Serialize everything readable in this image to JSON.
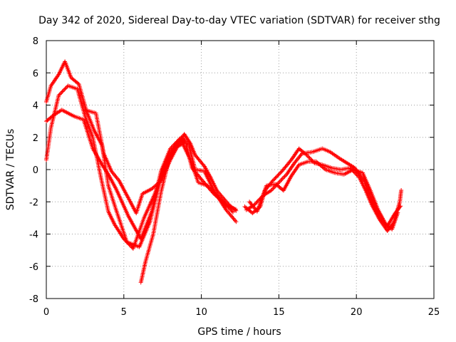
{
  "chart_data": {
    "type": "line",
    "title": "Day 342 of 2020, Sidereal Day-to-day VTEC variation (SDTVAR) for receiver sthg",
    "xlabel": "GPS time / hours",
    "ylabel": "SDTVAR / TECUs",
    "xlim": [
      0,
      25
    ],
    "ylim": [
      -8,
      8
    ],
    "xticks": [
      0,
      5,
      10,
      15,
      20,
      25
    ],
    "xtick_labels": [
      "0",
      "5",
      "10",
      "15",
      "20",
      "25"
    ],
    "yticks": [
      -8,
      -6,
      -4,
      -2,
      0,
      2,
      4,
      6,
      8
    ],
    "ytick_labels": [
      "-8",
      "-6",
      "-4",
      "-2",
      "0",
      "2",
      "4",
      "6",
      "8"
    ],
    "grid": true,
    "marker": "+",
    "color": "#ff0000",
    "series": [
      {
        "name": "track-1",
        "points": [
          [
            0.0,
            4.2
          ],
          [
            0.3,
            5.2
          ],
          [
            0.8,
            5.9
          ],
          [
            1.2,
            6.7
          ],
          [
            1.6,
            5.7
          ],
          [
            2.1,
            5.3
          ],
          [
            2.6,
            3.6
          ],
          [
            3.1,
            2.4
          ],
          [
            3.6,
            1.5
          ],
          [
            4.0,
            -1.0
          ],
          [
            4.5,
            -2.5
          ],
          [
            5.2,
            -4.5
          ],
          [
            6.0,
            -4.8
          ],
          [
            6.7,
            -3.2
          ],
          [
            7.3,
            -0.8
          ],
          [
            7.9,
            0.8
          ],
          [
            8.5,
            1.8
          ],
          [
            9.0,
            1.6
          ],
          [
            9.4,
            0.1
          ],
          [
            10.0,
            -0.6
          ],
          [
            10.8,
            -1.5
          ],
          [
            11.6,
            -2.2
          ],
          [
            12.3,
            -2.5
          ]
        ]
      },
      {
        "name": "track-2",
        "points": [
          [
            0.0,
            3.0
          ],
          [
            0.5,
            3.4
          ],
          [
            1.0,
            3.7
          ],
          [
            1.8,
            3.3
          ],
          [
            2.4,
            3.1
          ],
          [
            3.0,
            1.3
          ],
          [
            3.6,
            0.3
          ],
          [
            4.0,
            -0.3
          ],
          [
            4.5,
            -1.2
          ],
          [
            5.3,
            -2.9
          ],
          [
            6.1,
            -4.3
          ],
          [
            6.8,
            -2.6
          ],
          [
            7.4,
            -0.1
          ],
          [
            8.0,
            1.3
          ],
          [
            8.7,
            2.0
          ],
          [
            9.2,
            1.5
          ],
          [
            9.6,
            0.0
          ],
          [
            10.2,
            -0.1
          ],
          [
            10.8,
            -1.3
          ],
          [
            11.6,
            -2.5
          ],
          [
            12.3,
            -3.3
          ]
        ]
      },
      {
        "name": "track-3",
        "points": [
          [
            0.0,
            0.6
          ],
          [
            0.3,
            2.6
          ],
          [
            0.8,
            4.6
          ],
          [
            1.4,
            5.2
          ],
          [
            2.0,
            5.0
          ],
          [
            2.5,
            3.3
          ],
          [
            3.0,
            2.0
          ],
          [
            3.5,
            -0.4
          ],
          [
            4.0,
            -2.6
          ],
          [
            4.4,
            -3.4
          ],
          [
            5.0,
            -4.3
          ],
          [
            5.6,
            -4.9
          ],
          [
            6.3,
            -3.0
          ],
          [
            7.0,
            -1.5
          ],
          [
            7.6,
            0.2
          ],
          [
            8.2,
            1.3
          ],
          [
            8.8,
            1.6
          ],
          [
            9.3,
            0.6
          ],
          [
            9.8,
            -0.8
          ],
          [
            10.4,
            -1.0
          ],
          [
            11.2,
            -1.8
          ],
          [
            12.1,
            -2.7
          ]
        ]
      },
      {
        "name": "track-4",
        "points": [
          [
            2.5,
            3.7
          ],
          [
            3.2,
            3.5
          ],
          [
            3.7,
            1.0
          ],
          [
            4.2,
            -0.1
          ],
          [
            4.7,
            -0.7
          ],
          [
            5.2,
            -1.6
          ],
          [
            5.8,
            -2.7
          ],
          [
            6.2,
            -1.5
          ],
          [
            6.8,
            -1.2
          ],
          [
            7.4,
            -0.7
          ],
          [
            8.0,
            0.6
          ],
          [
            8.6,
            1.7
          ],
          [
            9.0,
            1.9
          ]
        ]
      },
      {
        "name": "track-5",
        "points": [
          [
            6.1,
            -7.0
          ],
          [
            6.4,
            -5.7
          ],
          [
            6.9,
            -4.0
          ],
          [
            7.4,
            -1.4
          ],
          [
            7.9,
            0.6
          ],
          [
            8.4,
            1.4
          ],
          [
            8.9,
            2.2
          ],
          [
            9.3,
            1.6
          ],
          [
            9.6,
            0.9
          ],
          [
            10.2,
            0.2
          ],
          [
            10.6,
            -0.5
          ],
          [
            11.0,
            -1.3
          ],
          [
            11.8,
            -2.2
          ],
          [
            12.3,
            -2.6
          ]
        ]
      },
      {
        "name": "track-6",
        "points": [
          [
            12.8,
            -2.3
          ],
          [
            13.3,
            -2.7
          ],
          [
            13.8,
            -2.3
          ],
          [
            14.1,
            -1.3
          ],
          [
            14.6,
            -0.7
          ],
          [
            15.2,
            -0.1
          ],
          [
            15.8,
            0.6
          ],
          [
            16.3,
            1.3
          ],
          [
            16.8,
            0.9
          ],
          [
            17.3,
            0.4
          ],
          [
            17.8,
            0.3
          ],
          [
            18.4,
            0.1
          ],
          [
            19.0,
            0.0
          ],
          [
            19.6,
            0.1
          ],
          [
            20.2,
            -0.5
          ],
          [
            20.6,
            -1.3
          ],
          [
            21.0,
            -2.2
          ],
          [
            21.5,
            -3.1
          ],
          [
            22.0,
            -3.8
          ],
          [
            22.4,
            -3.3
          ],
          [
            22.8,
            -2.0
          ],
          [
            22.9,
            -1.2
          ]
        ]
      },
      {
        "name": "track-7",
        "points": [
          [
            12.9,
            -2.5
          ],
          [
            13.4,
            -2.2
          ],
          [
            14.0,
            -1.6
          ],
          [
            14.5,
            -1.3
          ],
          [
            15.0,
            -0.8
          ],
          [
            15.5,
            -0.3
          ],
          [
            16.0,
            0.4
          ],
          [
            16.5,
            1.0
          ],
          [
            17.2,
            1.1
          ],
          [
            17.8,
            1.3
          ],
          [
            18.3,
            1.1
          ],
          [
            18.9,
            0.7
          ],
          [
            19.4,
            0.4
          ],
          [
            19.9,
            0.1
          ],
          [
            20.5,
            -0.7
          ],
          [
            21.0,
            -1.9
          ],
          [
            21.5,
            -3.0
          ],
          [
            22.0,
            -3.5
          ],
          [
            22.5,
            -2.7
          ],
          [
            22.9,
            -2.2
          ]
        ]
      },
      {
        "name": "track-8",
        "points": [
          [
            13.1,
            -2.0
          ],
          [
            13.6,
            -2.6
          ],
          [
            14.2,
            -1.0
          ],
          [
            14.8,
            -0.9
          ],
          [
            15.3,
            -1.3
          ],
          [
            15.8,
            -0.4
          ],
          [
            16.3,
            0.3
          ],
          [
            16.9,
            0.5
          ],
          [
            17.4,
            0.5
          ],
          [
            18.0,
            0.0
          ],
          [
            18.6,
            -0.2
          ],
          [
            19.2,
            -0.3
          ],
          [
            19.8,
            0.0
          ],
          [
            20.4,
            -0.2
          ],
          [
            20.9,
            -1.3
          ],
          [
            21.4,
            -2.5
          ],
          [
            21.9,
            -3.4
          ],
          [
            22.3,
            -3.7
          ],
          [
            22.7,
            -2.6
          ]
        ]
      }
    ]
  }
}
